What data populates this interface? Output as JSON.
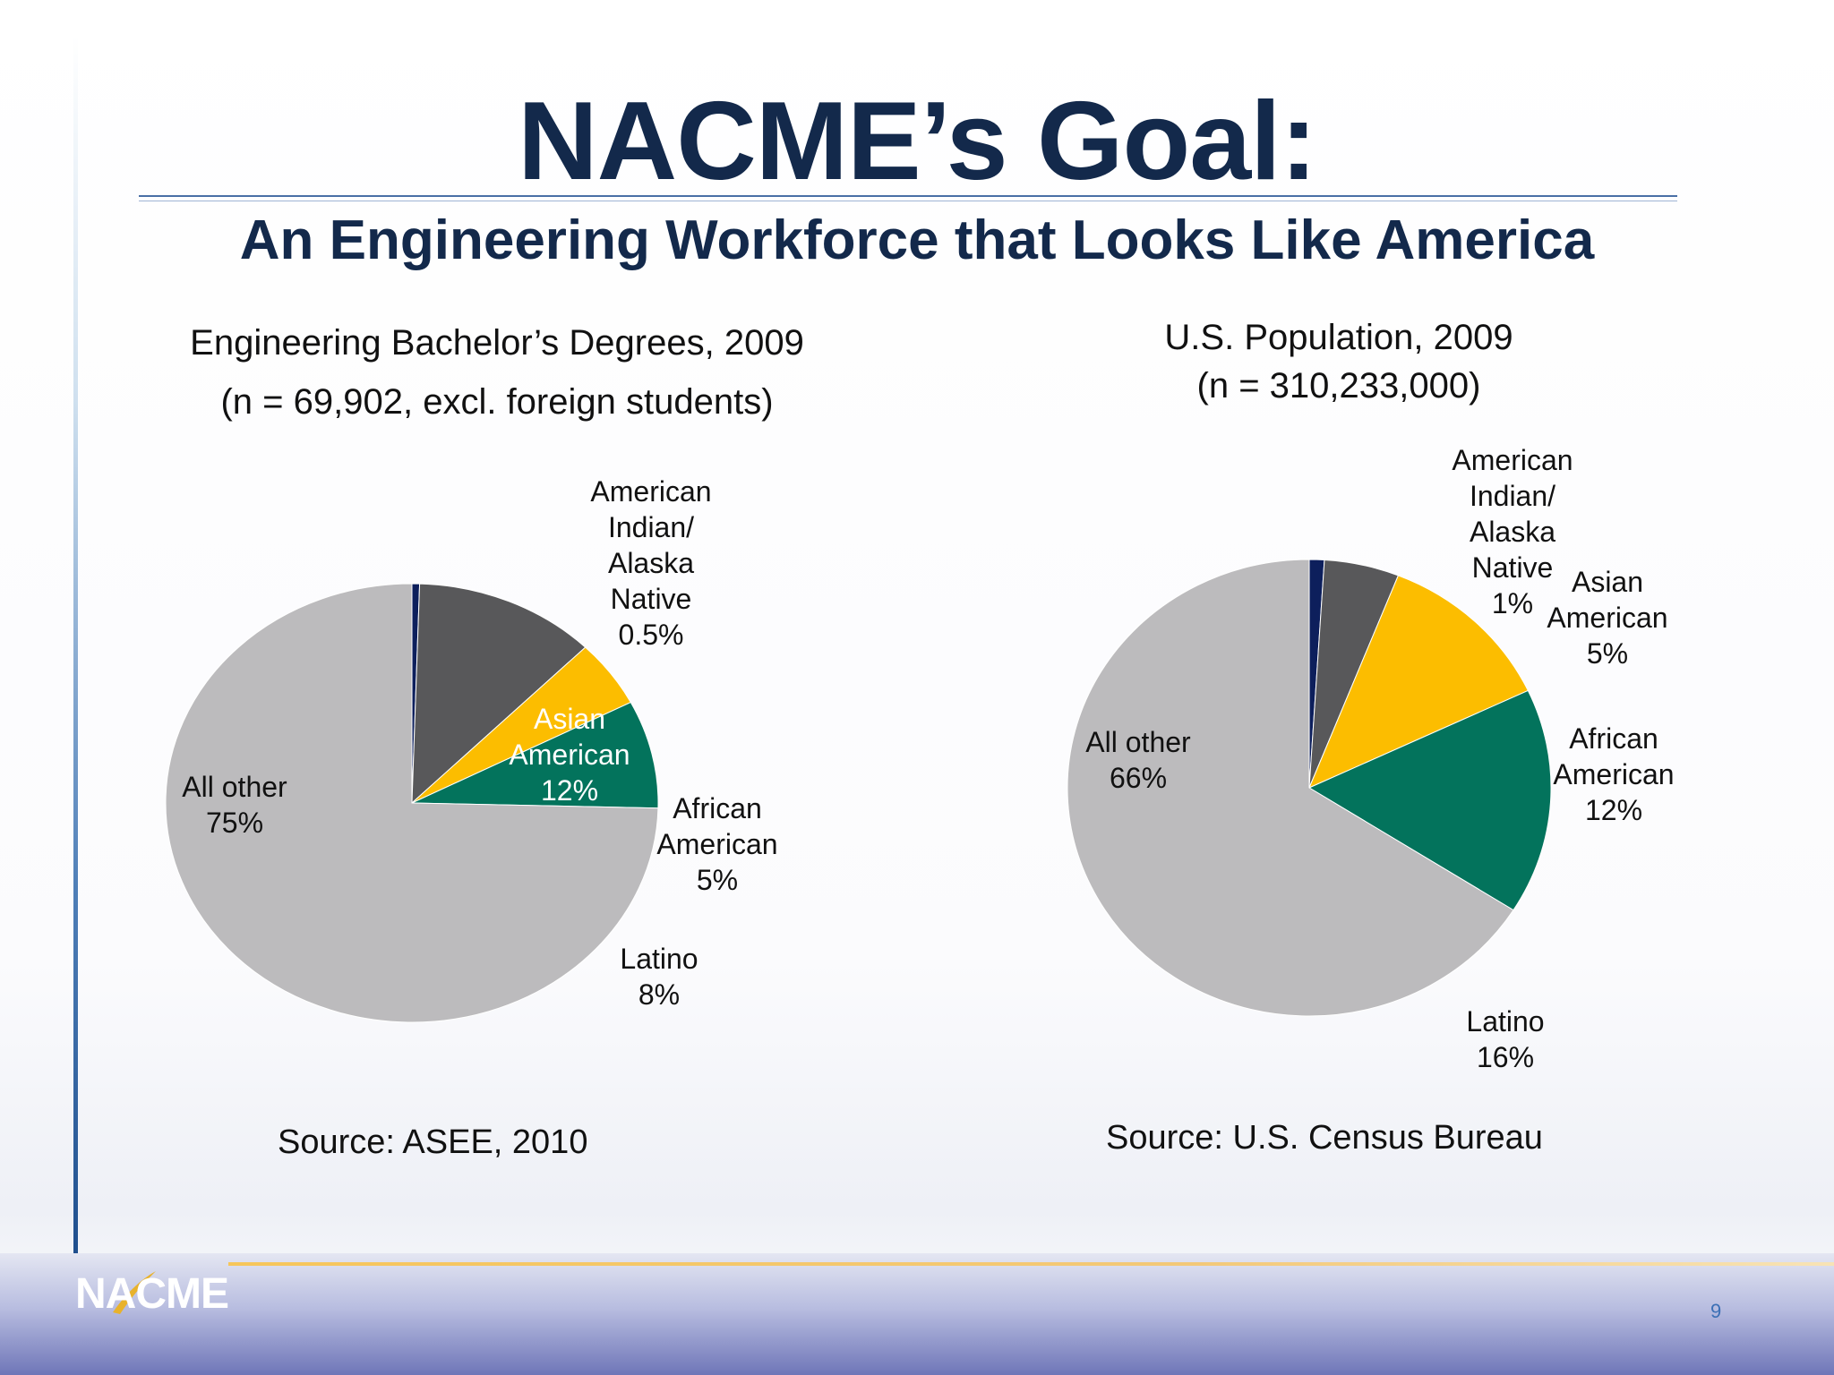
{
  "slide": {
    "title": "NACME’s Goal:",
    "subtitle": "An Engineering Workforce that Looks Like America",
    "page_number": "9",
    "logo_text": "NACME"
  },
  "colors": {
    "title": "#13294b",
    "american_indian": "#0d1f5c",
    "asian": "#58585a",
    "african_american": "#fcbd00",
    "latino": "#03735c",
    "all_other": "#bcbbbd"
  },
  "chart_data": [
    {
      "type": "pie",
      "title_line1": "Engineering Bachelor’s Degrees, 2009",
      "title_line2": "(n = 69,902, excl. foreign students)",
      "source": "Source: ASEE, 2010",
      "start_angle_deg": -90,
      "slices": [
        {
          "name": "American Indian/ Alaska Native",
          "value": 0.5,
          "label_lines": [
            "American",
            "Indian/",
            "Alaska",
            "Native",
            "0.5%"
          ],
          "color": "#0d1f5c"
        },
        {
          "name": "Asian American",
          "value": 12,
          "label_lines": [
            "Asian",
            "American",
            "12%"
          ],
          "color": "#58585a"
        },
        {
          "name": "African American",
          "value": 5,
          "label_lines": [
            "African",
            "American",
            "5%"
          ],
          "color": "#fcbd00"
        },
        {
          "name": "Latino",
          "value": 8,
          "label_lines": [
            "Latino",
            "8%"
          ],
          "color": "#03735c"
        },
        {
          "name": "All other",
          "value": 75,
          "label_lines": [
            "All other",
            "75%"
          ],
          "color": "#bcbbbd"
        }
      ]
    },
    {
      "type": "pie",
      "title_line1": "U.S. Population, 2009",
      "title_line2": "(n = 310,233,000)",
      "source": "Source: U.S. Census Bureau",
      "start_angle_deg": -90,
      "slices": [
        {
          "name": "American Indian/ Alaska Native",
          "value": 1,
          "label_lines": [
            "American",
            "Indian/",
            "Alaska",
            "Native",
            "1%"
          ],
          "color": "#0d1f5c"
        },
        {
          "name": "Asian American",
          "value": 5,
          "label_lines": [
            "Asian",
            "American",
            "5%"
          ],
          "color": "#58585a"
        },
        {
          "name": "African American",
          "value": 12,
          "label_lines": [
            "African",
            "American",
            "12%"
          ],
          "color": "#fcbd00"
        },
        {
          "name": "Latino",
          "value": 16,
          "label_lines": [
            "Latino",
            "16%"
          ],
          "color": "#03735c"
        },
        {
          "name": "All other",
          "value": 66,
          "label_lines": [
            "All other",
            "66%"
          ],
          "color": "#bcbbbd"
        }
      ]
    }
  ]
}
